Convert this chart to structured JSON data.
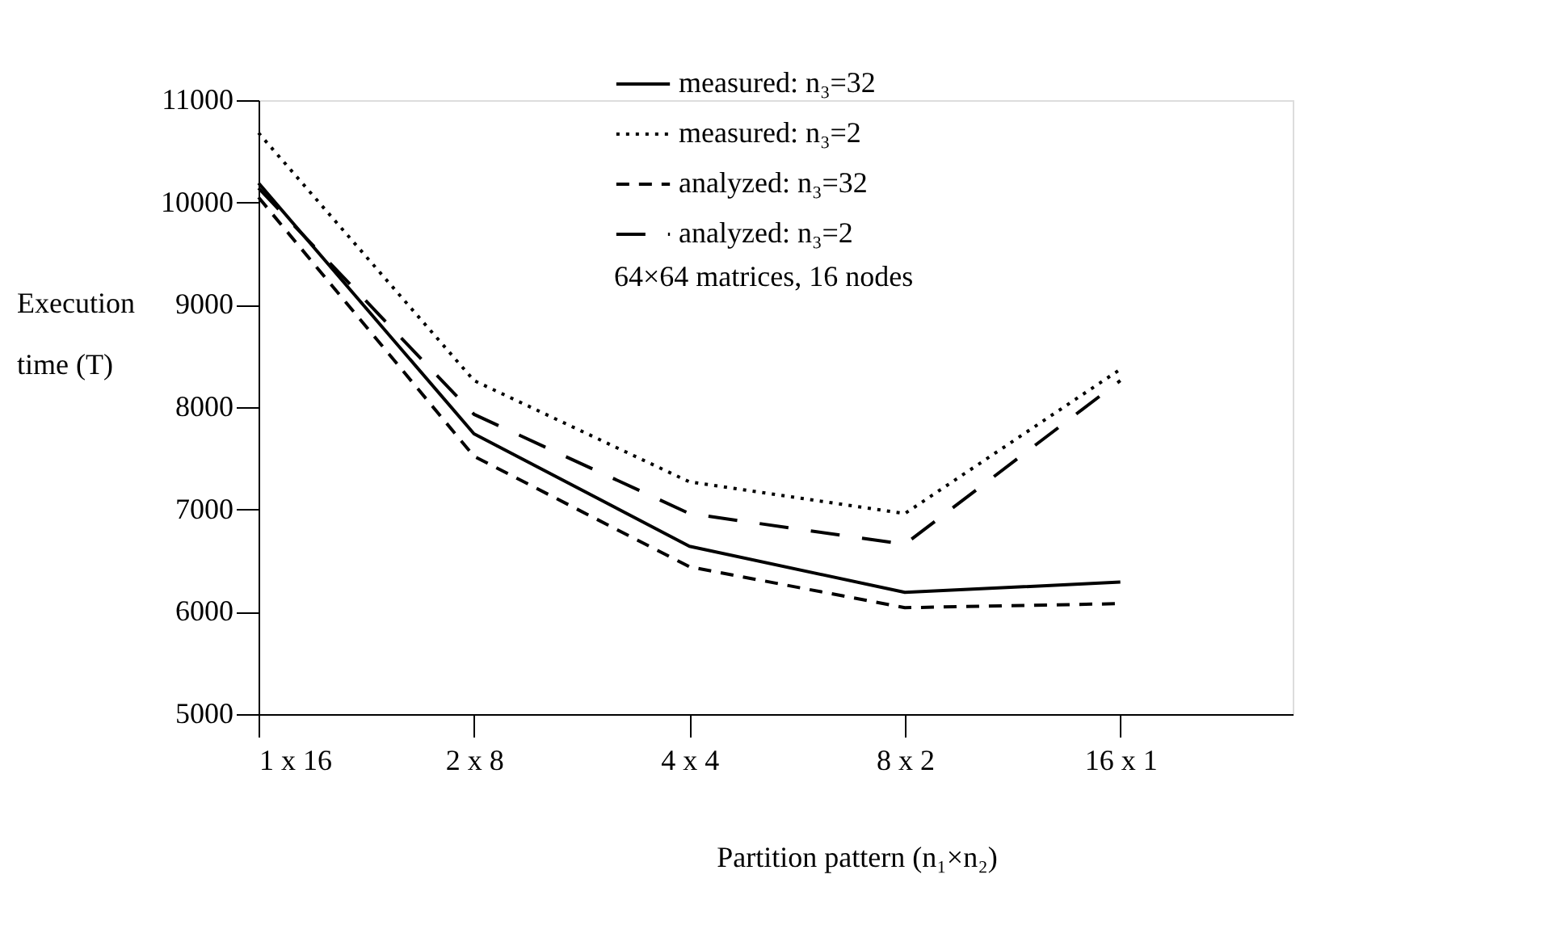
{
  "chart_data": {
    "type": "line",
    "xlabel": "Partition pattern (n₁×n₂)",
    "ylabel": "Execution time (T)",
    "categories": [
      "1 x 16",
      "2 x 8",
      "4 x 4",
      "8 x 2",
      "16 x 1"
    ],
    "ylim": [
      5000,
      11000
    ],
    "yticks": [
      5000,
      6000,
      7000,
      8000,
      9000,
      10000,
      11000
    ],
    "grid": false,
    "legend": "top right",
    "annotations": [
      "64×64 matrices, 16 nodes"
    ],
    "series": [
      {
        "name": "measured: n₃=32",
        "color": "#000000",
        "line_style": "solid",
        "values": [
          10190,
          7740,
          6640,
          6190,
          6290
        ]
      },
      {
        "name": "measured: n₃=2",
        "color": "#000000",
        "line_style": "dotted",
        "values": [
          10680,
          8260,
          7270,
          6960,
          8370
        ]
      },
      {
        "name": "analyzed: n₃=32",
        "color": "#000000",
        "line_style": "dashed",
        "values": [
          10050,
          7520,
          6440,
          6040,
          6080
        ]
      },
      {
        "name": "analyzed: n₃=2",
        "color": "#000000",
        "line_style": "dashed",
        "values": [
          10140,
          7930,
          6960,
          6660,
          8260
        ]
      }
    ]
  }
}
